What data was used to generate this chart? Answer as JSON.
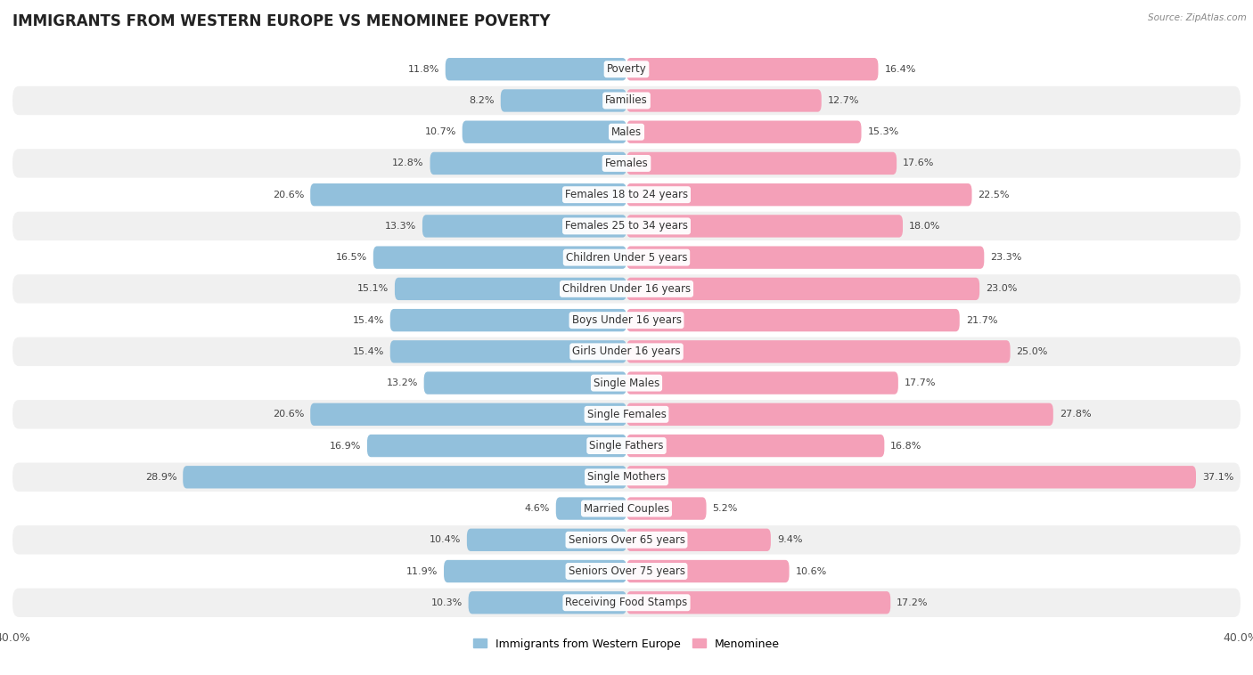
{
  "title": "IMMIGRANTS FROM WESTERN EUROPE VS MENOMINEE POVERTY",
  "source": "Source: ZipAtlas.com",
  "categories": [
    "Poverty",
    "Families",
    "Males",
    "Females",
    "Females 18 to 24 years",
    "Females 25 to 34 years",
    "Children Under 5 years",
    "Children Under 16 years",
    "Boys Under 16 years",
    "Girls Under 16 years",
    "Single Males",
    "Single Females",
    "Single Fathers",
    "Single Mothers",
    "Married Couples",
    "Seniors Over 65 years",
    "Seniors Over 75 years",
    "Receiving Food Stamps"
  ],
  "left_values": [
    11.8,
    8.2,
    10.7,
    12.8,
    20.6,
    13.3,
    16.5,
    15.1,
    15.4,
    15.4,
    13.2,
    20.6,
    16.9,
    28.9,
    4.6,
    10.4,
    11.9,
    10.3
  ],
  "right_values": [
    16.4,
    12.7,
    15.3,
    17.6,
    22.5,
    18.0,
    23.3,
    23.0,
    21.7,
    25.0,
    17.7,
    27.8,
    16.8,
    37.1,
    5.2,
    9.4,
    10.6,
    17.2
  ],
  "left_color": "#92C0DC",
  "right_color": "#F4A0B8",
  "left_label": "Immigrants from Western Europe",
  "right_label": "Menominee",
  "axis_max": 40.0,
  "bg_light": "#f0f0f0",
  "bg_dark": "#ffffff",
  "title_fontsize": 12,
  "label_fontsize": 8.5,
  "value_fontsize": 8
}
